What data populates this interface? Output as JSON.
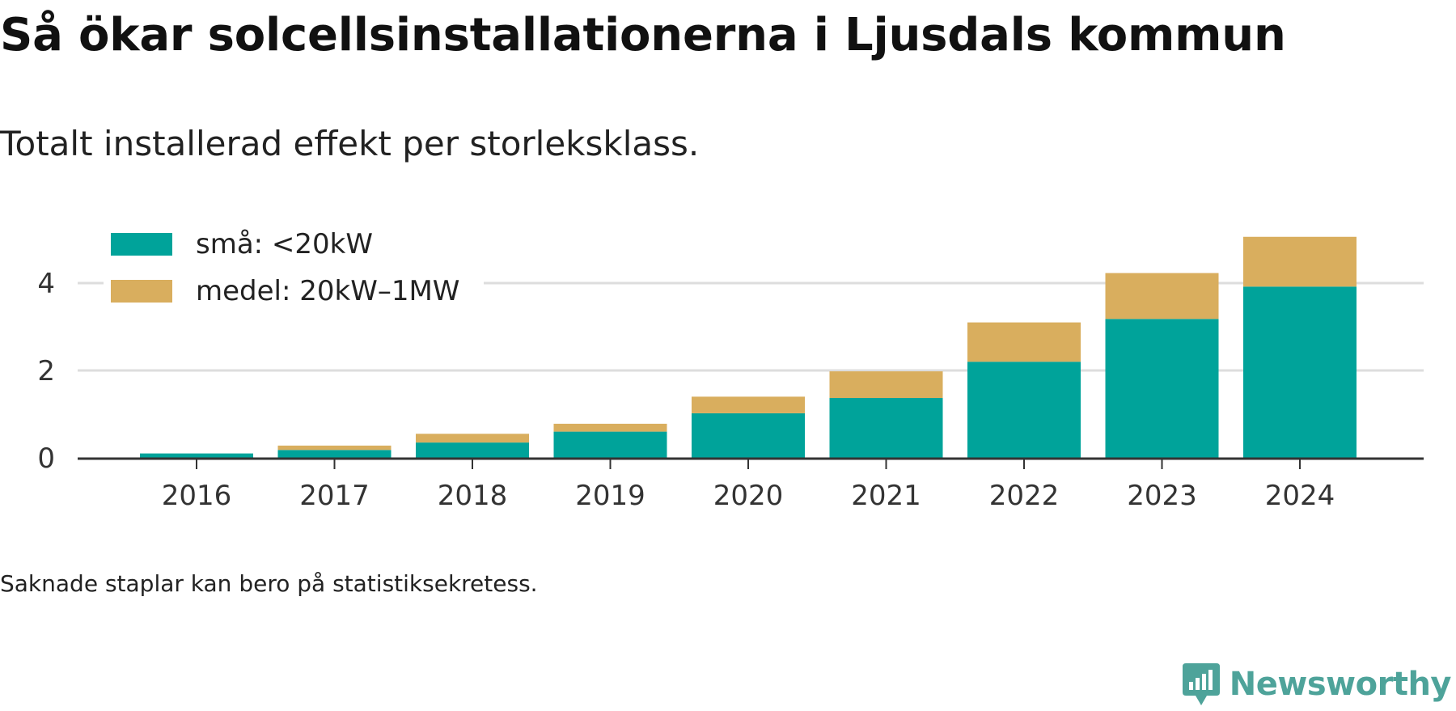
{
  "header": {
    "title": "Så ökar solcellsinstallationerna i Ljusdals kommun",
    "subtitle": "Totalt installerad effekt per storleksklass."
  },
  "footer": {
    "note": "Saknade staplar kan bero på statistiksekretess.",
    "brand": "Newsworthy",
    "brand_icon": "newsworthy-logo-icon"
  },
  "colors": {
    "small": "#00a39a",
    "medium": "#d9ae5e",
    "grid": "#dddddd",
    "axis": "#333333",
    "brand": "#4ea39a"
  },
  "chart_data": {
    "type": "bar",
    "stacked": true,
    "categories": [
      "2016",
      "2017",
      "2018",
      "2019",
      "2020",
      "2021",
      "2022",
      "2023",
      "2024"
    ],
    "series": [
      {
        "name": "små: <20kW",
        "values": [
          0.1,
          0.18,
          0.35,
          0.6,
          1.02,
          1.37,
          2.2,
          3.18,
          3.92
        ]
      },
      {
        "name": "medel: 20kW–1MW",
        "values": [
          0.0,
          0.1,
          0.2,
          0.18,
          0.38,
          0.61,
          0.9,
          1.05,
          1.14
        ]
      }
    ],
    "ylim": [
      0,
      5.2
    ],
    "yticks": [
      "0",
      "2",
      "4"
    ],
    "grid": true,
    "legend_position": "top-left"
  }
}
